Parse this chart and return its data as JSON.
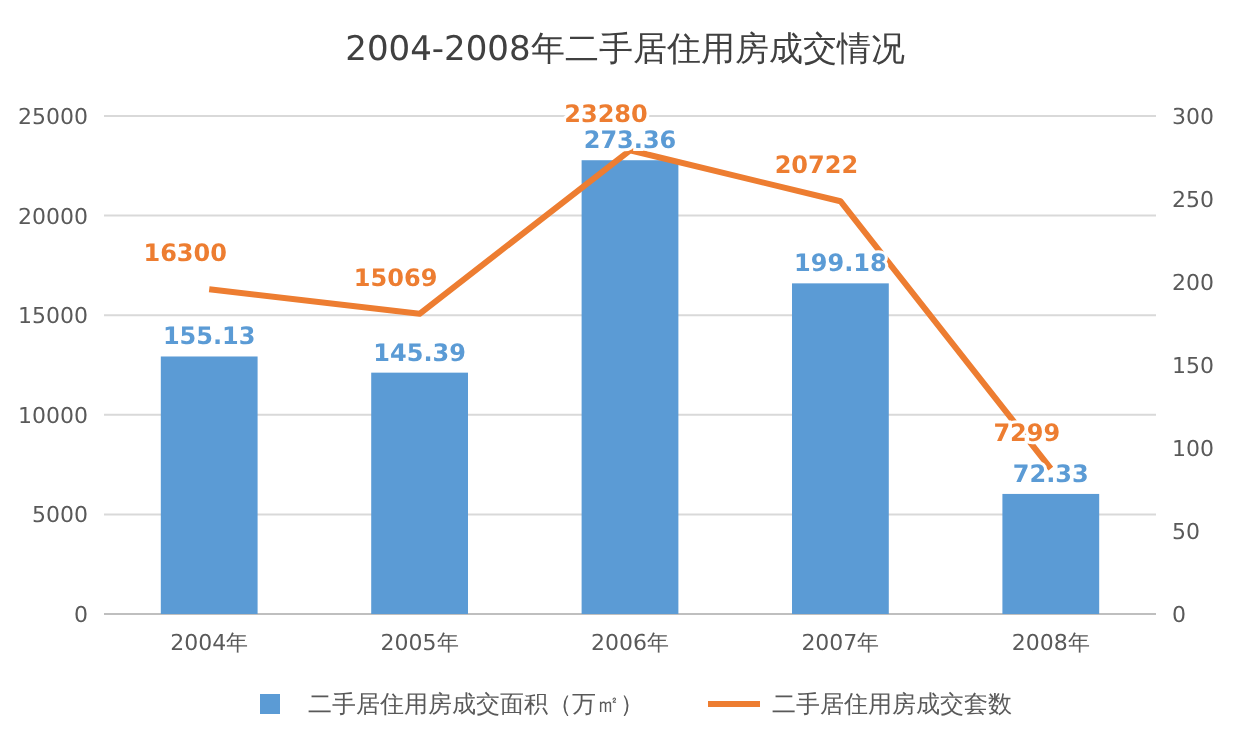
{
  "chart_data": {
    "type": "bar",
    "title": "2004-2008年二手居住用房成交情况",
    "categories": [
      "2004年",
      "2005年",
      "2006年",
      "2007年",
      "2008年"
    ],
    "series": [
      {
        "name": "二手居住用房成交面积（万㎡）",
        "axis": "y2",
        "color": "#5b9bd5",
        "values": [
          155.13,
          145.39,
          273.36,
          199.18,
          72.33
        ]
      },
      {
        "name": "二手居住用房成交套数",
        "type": "line",
        "axis": "y",
        "color": "#ed7d31",
        "values": [
          16300,
          15069,
          23280,
          20722,
          7299
        ]
      }
    ],
    "ylim": [
      0,
      25000
    ],
    "yticks": [
      0,
      5000,
      10000,
      15000,
      20000,
      25000
    ],
    "y2lim": [
      0,
      300
    ],
    "y2ticks": [
      0,
      50,
      100,
      150,
      200,
      250,
      300
    ],
    "grid": "y",
    "legend": "bottom",
    "data_labels": true,
    "marker": "none"
  }
}
